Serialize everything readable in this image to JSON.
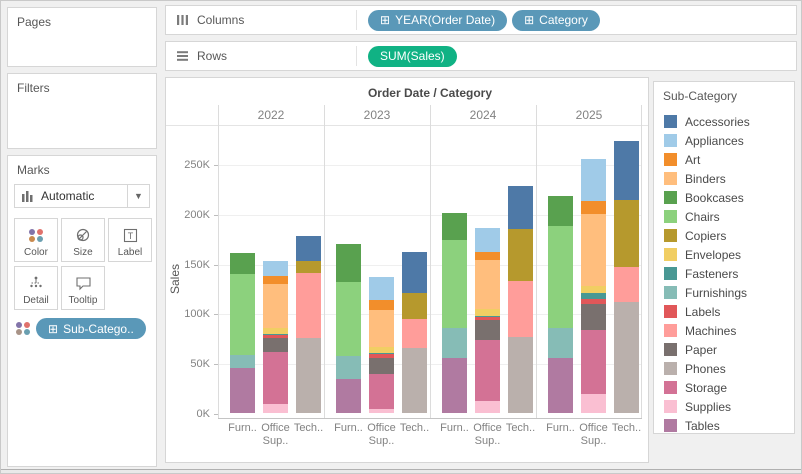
{
  "pages": {
    "title": "Pages"
  },
  "filters": {
    "title": "Filters"
  },
  "marks": {
    "title": "Marks",
    "mark_type": "Automatic",
    "buttons": [
      {
        "label": "Color"
      },
      {
        "label": "Size"
      },
      {
        "label": "Label"
      },
      {
        "label": "Detail"
      },
      {
        "label": "Tooltip"
      }
    ],
    "pill": {
      "label": "Sub-Catego..",
      "color": "#5A98B8",
      "has_plus": true
    }
  },
  "shelves": {
    "columns": {
      "label": "Columns",
      "pills": [
        {
          "label": "YEAR(Order Date)",
          "color": "#5A98B8",
          "has_plus": true
        },
        {
          "label": "Category",
          "color": "#5A98B8",
          "has_plus": true
        }
      ]
    },
    "rows": {
      "label": "Rows",
      "pills": [
        {
          "label": "SUM(Sales)",
          "color": "#10B284",
          "has_plus": false
        }
      ]
    }
  },
  "legend": {
    "title": "Sub-Category",
    "items": [
      {
        "label": "Accessories",
        "color": "#4E79A7"
      },
      {
        "label": "Appliances",
        "color": "#A0CBE8"
      },
      {
        "label": "Art",
        "color": "#F28E2B"
      },
      {
        "label": "Binders",
        "color": "#FFBE7D"
      },
      {
        "label": "Bookcases",
        "color": "#59A14F"
      },
      {
        "label": "Chairs",
        "color": "#8CD17D"
      },
      {
        "label": "Copiers",
        "color": "#B6992D"
      },
      {
        "label": "Envelopes",
        "color": "#F1CE63"
      },
      {
        "label": "Fasteners",
        "color": "#499894"
      },
      {
        "label": "Furnishings",
        "color": "#86BCB6"
      },
      {
        "label": "Labels",
        "color": "#E15759"
      },
      {
        "label": "Machines",
        "color": "#FF9D9A"
      },
      {
        "label": "Paper",
        "color": "#79706E"
      },
      {
        "label": "Phones",
        "color": "#BAB0AC"
      },
      {
        "label": "Storage",
        "color": "#D37295"
      },
      {
        "label": "Supplies",
        "color": "#FABFD2"
      },
      {
        "label": "Tables",
        "color": "#B07AA1"
      }
    ]
  },
  "chart_data": {
    "type": "bar",
    "subtype": "stacked",
    "title": "Order Date / Category",
    "ylabel": "Sales",
    "ylim_k": [
      0,
      250
    ],
    "yticks": [
      {
        "v": 0,
        "label": "0K"
      },
      {
        "v": 50,
        "label": "50K"
      },
      {
        "v": 100,
        "label": "100K"
      },
      {
        "v": 150,
        "label": "150K"
      },
      {
        "v": 200,
        "label": "200K"
      },
      {
        "v": 250,
        "label": "250K"
      }
    ],
    "years": [
      "2022",
      "2023",
      "2024",
      "2025"
    ],
    "categories": [
      "Furniture",
      "Office Supplies",
      "Technology"
    ],
    "category_axis_labels": [
      "Furn..",
      "Office",
      "Tech.."
    ],
    "category_axis_label_line2": "Sup..",
    "stack_order": "bottom-up",
    "values_unit": "thousands (K) of Sales, estimated from pixels",
    "stacks": [
      {
        "year": "2022",
        "bars": [
          {
            "category": "Furniture",
            "total_k": 161,
            "segments": [
              [
                "Tables",
                45
              ],
              [
                "Furnishings",
                13
              ],
              [
                "Chairs",
                82
              ],
              [
                "Bookcases",
                21
              ]
            ]
          },
          {
            "category": "Office Supplies",
            "total_k": 153,
            "segments": [
              [
                "Supplies",
                9
              ],
              [
                "Storage",
                52
              ],
              [
                "Paper",
                14
              ],
              [
                "Labels",
                3
              ],
              [
                "Fasteners",
                1
              ],
              [
                "Envelopes",
                6
              ],
              [
                "Binders",
                45
              ],
              [
                "Art",
                8
              ],
              [
                "Appliances",
                15
              ]
            ]
          },
          {
            "category": "Technology",
            "total_k": 178,
            "segments": [
              [
                "Phones",
                75
              ],
              [
                "Machines",
                66
              ],
              [
                "Copiers",
                12
              ],
              [
                "Accessories",
                25
              ]
            ]
          }
        ]
      },
      {
        "year": "2023",
        "bars": [
          {
            "category": "Furniture",
            "total_k": 170,
            "segments": [
              [
                "Tables",
                34
              ],
              [
                "Furnishings",
                23
              ],
              [
                "Chairs",
                75
              ],
              [
                "Bookcases",
                38
              ]
            ]
          },
          {
            "category": "Office Supplies",
            "total_k": 136,
            "segments": [
              [
                "Supplies",
                4
              ],
              [
                "Storage",
                35
              ],
              [
                "Paper",
                16
              ],
              [
                "Labels",
                4
              ],
              [
                "Fasteners",
                1
              ],
              [
                "Envelopes",
                6
              ],
              [
                "Binders",
                37
              ],
              [
                "Art",
                10
              ],
              [
                "Appliances",
                23
              ]
            ]
          },
          {
            "category": "Technology",
            "total_k": 162,
            "segments": [
              [
                "Phones",
                65
              ],
              [
                "Machines",
                29
              ],
              [
                "Copiers",
                27
              ],
              [
                "Accessories",
                41
              ]
            ]
          }
        ]
      },
      {
        "year": "2024",
        "bars": [
          {
            "category": "Furniture",
            "total_k": 201,
            "segments": [
              [
                "Tables",
                55
              ],
              [
                "Furnishings",
                30
              ],
              [
                "Chairs",
                89
              ],
              [
                "Bookcases",
                27
              ]
            ]
          },
          {
            "category": "Office Supplies",
            "total_k": 186,
            "segments": [
              [
                "Supplies",
                12
              ],
              [
                "Storage",
                61
              ],
              [
                "Paper",
                20
              ],
              [
                "Labels",
                3
              ],
              [
                "Fasteners",
                1
              ],
              [
                "Envelopes",
                7
              ],
              [
                "Binders",
                50
              ],
              [
                "Art",
                8
              ],
              [
                "Appliances",
                24
              ]
            ]
          },
          {
            "category": "Technology",
            "total_k": 228,
            "segments": [
              [
                "Phones",
                76
              ],
              [
                "Machines",
                57
              ],
              [
                "Copiers",
                52
              ],
              [
                "Accessories",
                43
              ]
            ]
          }
        ]
      },
      {
        "year": "2025",
        "bars": [
          {
            "category": "Furniture",
            "total_k": 218,
            "segments": [
              [
                "Tables",
                55
              ],
              [
                "Furnishings",
                30
              ],
              [
                "Chairs",
                103
              ],
              [
                "Bookcases",
                30
              ]
            ]
          },
          {
            "category": "Office Supplies",
            "total_k": 255,
            "segments": [
              [
                "Supplies",
                19
              ],
              [
                "Storage",
                64
              ],
              [
                "Paper",
                27
              ],
              [
                "Labels",
                5
              ],
              [
                "Fasteners",
                6
              ],
              [
                "Envelopes",
                7
              ],
              [
                "Binders",
                72
              ],
              [
                "Art",
                13
              ],
              [
                "Appliances",
                42
              ]
            ]
          },
          {
            "category": "Technology",
            "total_k": 273,
            "segments": [
              [
                "Phones",
                111
              ],
              [
                "Machines",
                36
              ],
              [
                "Copiers",
                67
              ],
              [
                "Accessories",
                59
              ]
            ]
          }
        ]
      }
    ],
    "legend_position": "right",
    "grid": true
  }
}
